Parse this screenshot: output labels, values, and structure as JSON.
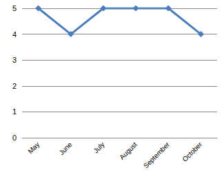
{
  "chart_data": {
    "type": "line",
    "categories": [
      "May",
      "June",
      "July",
      "August",
      "September",
      "October"
    ],
    "values": [
      5,
      4,
      5,
      5,
      5,
      4
    ],
    "color": "#4a7ebb",
    "marker": "diamond",
    "line_style": "solid",
    "ylim": [
      0,
      5
    ],
    "yticks": [
      0,
      1,
      2,
      3,
      4,
      5
    ],
    "grid": true
  }
}
